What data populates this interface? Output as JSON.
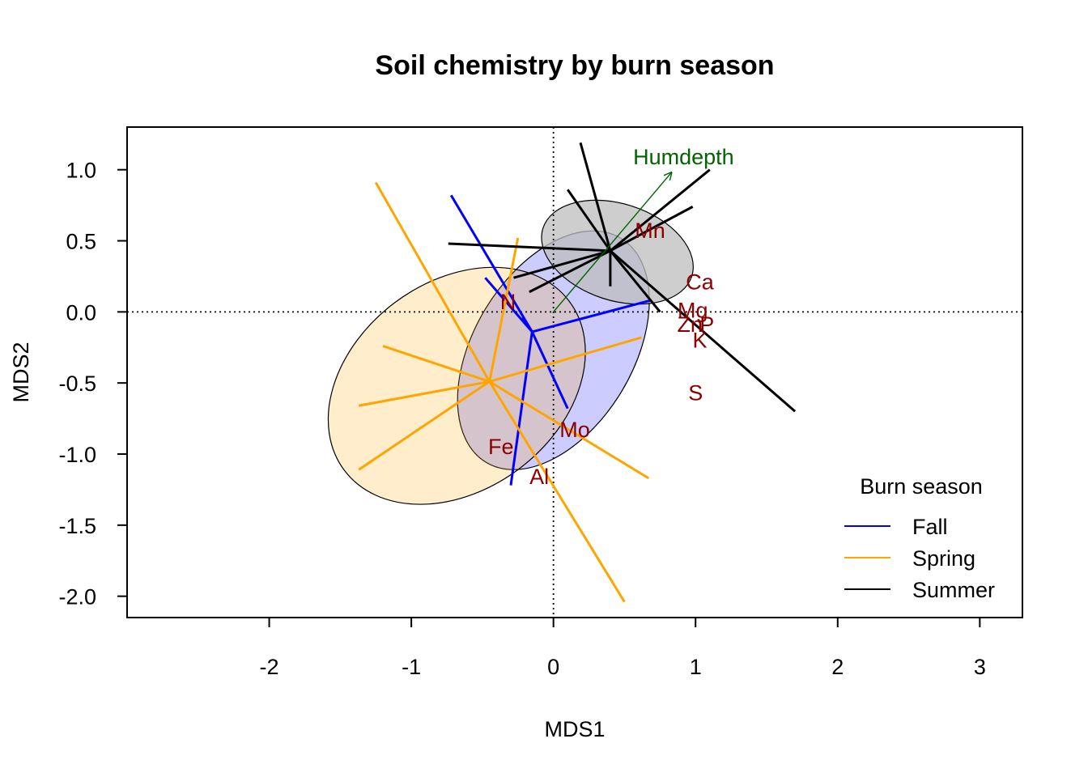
{
  "chart_data": {
    "type": "scatter",
    "title": "Soil chemistry by burn season",
    "xlabel": "MDS1",
    "ylabel": "MDS2",
    "xlim": [
      -3,
      3.3
    ],
    "ylim": [
      -2.15,
      1.3
    ],
    "xticks": [
      -2,
      -1,
      0,
      1,
      2,
      3
    ],
    "yticks": [
      1.0,
      0.5,
      0.0,
      -0.5,
      -1.0,
      -1.5,
      -2.0
    ],
    "ytick_labels": [
      "1.0",
      "0.5",
      "0.0",
      "-0.5",
      "-1.0",
      "-1.5",
      "-2.0"
    ],
    "reference_lines": {
      "x": 0,
      "y": 0,
      "style": "dotted"
    },
    "groups": [
      {
        "name": "Fall",
        "color": "#0000ff",
        "ellipse_fill": "#0000ff",
        "centroid": [
          -0.15,
          -0.14
        ],
        "ellipse": {
          "center": [
            0,
            -0.27
          ],
          "rx": 0.92,
          "ry": 0.56,
          "rotation_deg": 59
        },
        "sites": [
          [
            -0.72,
            0.82
          ],
          [
            -0.48,
            0.24
          ],
          [
            -0.22,
            -0.04
          ],
          [
            0.1,
            -0.68
          ],
          [
            -0.3,
            -1.22
          ],
          [
            0.68,
            0.08
          ]
        ]
      },
      {
        "name": "Spring",
        "color": "#ffa500",
        "ellipse_fill": "#ffa500",
        "centroid": [
          -0.45,
          -0.49
        ],
        "ellipse": {
          "center": [
            -0.68,
            -0.52
          ],
          "rx": 0.99,
          "ry": 0.73,
          "rotation_deg": 37
        },
        "sites": [
          [
            -1.25,
            0.91
          ],
          [
            -0.25,
            0.52
          ],
          [
            -1.2,
            -0.24
          ],
          [
            -1.37,
            -0.66
          ],
          [
            0.62,
            -0.18
          ],
          [
            -1.37,
            -1.11
          ],
          [
            0.67,
            -1.17
          ],
          [
            0.5,
            -2.04
          ]
        ]
      },
      {
        "name": "Summer",
        "color": "#000000",
        "ellipse_fill": "#bdbdbd",
        "centroid": [
          0.4,
          0.43
        ],
        "ellipse": {
          "center": [
            0.45,
            0.42
          ],
          "rx": 0.55,
          "ry": 0.34,
          "rotation_deg": -18
        },
        "sites": [
          [
            0.19,
            1.19
          ],
          [
            0.1,
            0.86
          ],
          [
            1.1,
            1.0
          ],
          [
            0.98,
            0.74
          ],
          [
            -0.74,
            0.48
          ],
          [
            -0.28,
            0.24
          ],
          [
            -0.17,
            0.14
          ],
          [
            0.4,
            0.18
          ],
          [
            0.75,
            0.0
          ],
          [
            1.7,
            -0.7
          ]
        ]
      }
    ],
    "species": [
      {
        "label": "Mn",
        "x": 0.68,
        "y": 0.57
      },
      {
        "label": "Ca",
        "x": 1.03,
        "y": 0.21
      },
      {
        "label": "Mg",
        "x": 0.98,
        "y": 0.01
      },
      {
        "label": "Zn",
        "x": 0.96,
        "y": -0.09
      },
      {
        "label": "P",
        "x": 1.08,
        "y": -0.09
      },
      {
        "label": "K",
        "x": 1.03,
        "y": -0.2
      },
      {
        "label": "S",
        "x": 1.0,
        "y": -0.57
      },
      {
        "label": "N",
        "x": -0.32,
        "y": 0.07
      },
      {
        "label": "Mo",
        "x": 0.15,
        "y": -0.83
      },
      {
        "label": "Fe",
        "x": -0.37,
        "y": -0.95
      },
      {
        "label": "Al",
        "x": -0.1,
        "y": -1.16
      }
    ],
    "species_color": "#8b0000",
    "env_vector": {
      "label": "Humdepth",
      "x": 0.83,
      "y": 0.98,
      "color": "#006400"
    },
    "legend": {
      "title": "Burn season",
      "position": "bottom-right",
      "entries": [
        "Fall",
        "Spring",
        "Summer"
      ]
    }
  }
}
